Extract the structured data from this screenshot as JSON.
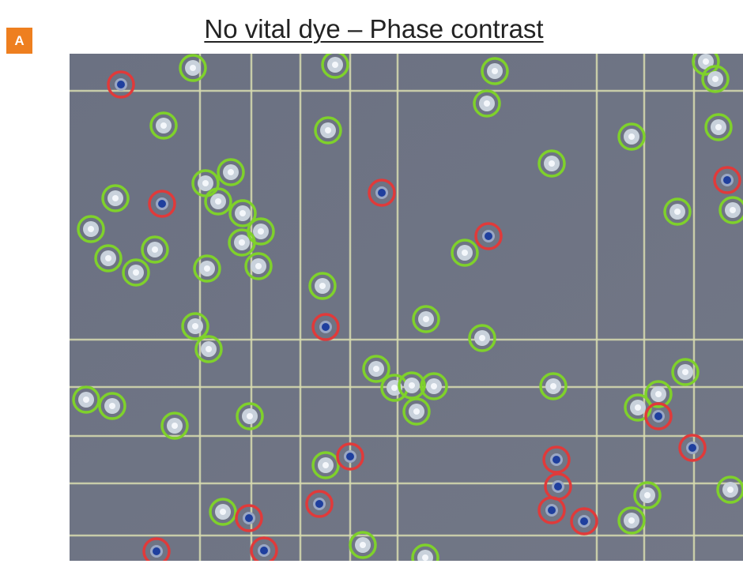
{
  "panel_label": "A",
  "title": "No vital dye – Phase contrast"
}
